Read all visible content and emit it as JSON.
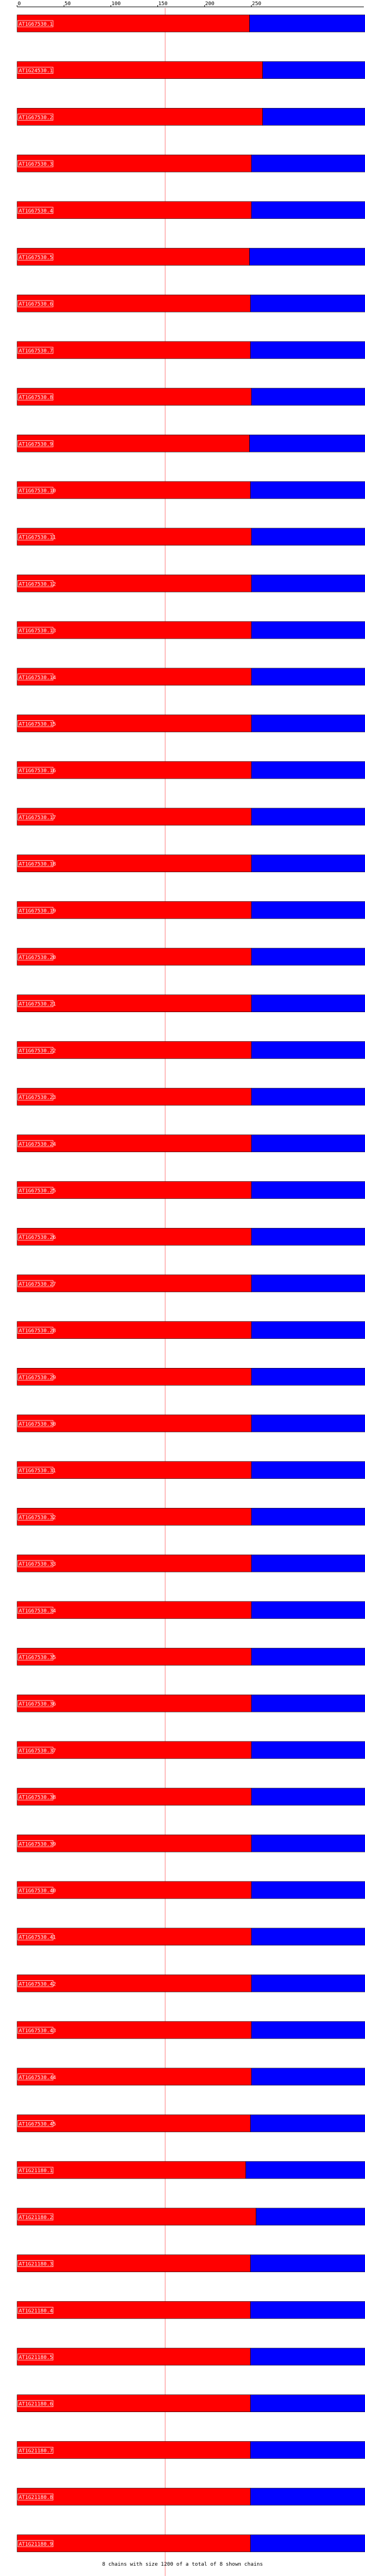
{
  "chart_data": {
    "type": "bar",
    "title": "",
    "xlabel": "",
    "ylabel": "",
    "xlim": [
      0,
      370
    ],
    "x_ticks": [
      0,
      50,
      100,
      150,
      200,
      250
    ],
    "reference_line": 158,
    "colors": {
      "first": "#ff0000",
      "second": "#0000ff",
      "outline": "#000000",
      "grid": "#ff8080",
      "connector": "#0000ff"
    },
    "legend": "none",
    "rows": [
      {
        "label": "AT1G67530.1",
        "a": 248,
        "b": 157
      },
      {
        "label": "AT1G24530.1",
        "a": 262,
        "b": 145
      },
      {
        "label": "AT1G67530.2",
        "a": 262,
        "b": 145
      },
      {
        "label": "AT1G67530.3",
        "a": 250,
        "b": 150
      },
      {
        "label": "AT1G67530.4",
        "a": 250,
        "b": 150
      },
      {
        "label": "AT1G67530.5",
        "a": 248,
        "b": 152
      },
      {
        "label": "AT1G67530.6",
        "a": 249,
        "b": 150
      },
      {
        "label": "AT1G67530.7",
        "a": 249,
        "b": 151
      },
      {
        "label": "AT1G67530.8",
        "a": 250,
        "b": 150
      },
      {
        "label": "AT1G67530.9",
        "a": 248,
        "b": 152
      },
      {
        "label": "AT1G67530.10",
        "a": 249,
        "b": 151
      },
      {
        "label": "AT1G67530.11",
        "a": 250,
        "b": 150
      },
      {
        "label": "AT1G67530.12",
        "a": 250,
        "b": 150
      },
      {
        "label": "AT1G67530.13",
        "a": 250,
        "b": 150
      },
      {
        "label": "AT1G67530.14",
        "a": 250,
        "b": 150
      },
      {
        "label": "AT1G67530.15",
        "a": 250,
        "b": 150
      },
      {
        "label": "AT1G67530.16",
        "a": 250,
        "b": 150
      },
      {
        "label": "AT1G67530.17",
        "a": 250,
        "b": 150
      },
      {
        "label": "AT1G67530.18",
        "a": 250,
        "b": 150
      },
      {
        "label": "AT1G67530.19",
        "a": 250,
        "b": 150
      },
      {
        "label": "AT1G67530.20",
        "a": 250,
        "b": 150
      },
      {
        "label": "AT1G67530.21",
        "a": 250,
        "b": 150
      },
      {
        "label": "AT1G67530.22",
        "a": 250,
        "b": 150
      },
      {
        "label": "AT1G67530.23",
        "a": 250,
        "b": 150
      },
      {
        "label": "AT1G67530.24",
        "a": 250,
        "b": 150
      },
      {
        "label": "AT1G67530.25",
        "a": 250,
        "b": 150
      },
      {
        "label": "AT1G67530.26",
        "a": 250,
        "b": 150
      },
      {
        "label": "AT1G67530.27",
        "a": 250,
        "b": 150
      },
      {
        "label": "AT1G67530.28",
        "a": 250,
        "b": 150
      },
      {
        "label": "AT1G67530.29",
        "a": 250,
        "b": 150
      },
      {
        "label": "AT1G67530.30",
        "a": 250,
        "b": 150
      },
      {
        "label": "AT1G67530.31",
        "a": 250,
        "b": 150
      },
      {
        "label": "AT1G67530.32",
        "a": 250,
        "b": 150
      },
      {
        "label": "AT1G67530.33",
        "a": 250,
        "b": 150
      },
      {
        "label": "AT1G67530.34",
        "a": 250,
        "b": 150
      },
      {
        "label": "AT1G67530.35",
        "a": 250,
        "b": 150
      },
      {
        "label": "AT1G67530.36",
        "a": 250,
        "b": 150
      },
      {
        "label": "AT1G67530.37",
        "a": 250,
        "b": 150
      },
      {
        "label": "AT1G67530.38",
        "a": 250,
        "b": 150
      },
      {
        "label": "AT1G67530.39",
        "a": 250,
        "b": 150
      },
      {
        "label": "AT1G67530.40",
        "a": 250,
        "b": 150
      },
      {
        "label": "AT1G67530.41",
        "a": 250,
        "b": 150
      },
      {
        "label": "AT1G67530.42",
        "a": 250,
        "b": 150
      },
      {
        "label": "AT1G67530.43",
        "a": 250,
        "b": 150
      },
      {
        "label": "AT1G67530.44",
        "a": 250,
        "b": 150
      },
      {
        "label": "AT1G67530.45",
        "a": 249,
        "b": 151
      },
      {
        "label": "AT1G21180.1",
        "a": 244,
        "b": 155
      },
      {
        "label": "AT1G21180.2",
        "a": 255,
        "b": 145
      },
      {
        "label": "AT1G21180.3",
        "a": 249,
        "b": 151
      },
      {
        "label": "AT1G21180.4",
        "a": 249,
        "b": 151
      },
      {
        "label": "AT1G21180.5",
        "a": 249,
        "b": 151
      },
      {
        "label": "AT1G21180.6",
        "a": 249,
        "b": 151
      },
      {
        "label": "AT1G21180.7",
        "a": 249,
        "b": 151
      },
      {
        "label": "AT1G21180.8",
        "a": 249,
        "b": 151
      },
      {
        "label": "AT1G21180.9",
        "a": 249,
        "b": 151
      },
      {
        "label": "AT1G21180.10",
        "a": 249,
        "b": 151
      }
    ],
    "footer": "8 chains with size 1200 of a total of 8 shown chains"
  }
}
